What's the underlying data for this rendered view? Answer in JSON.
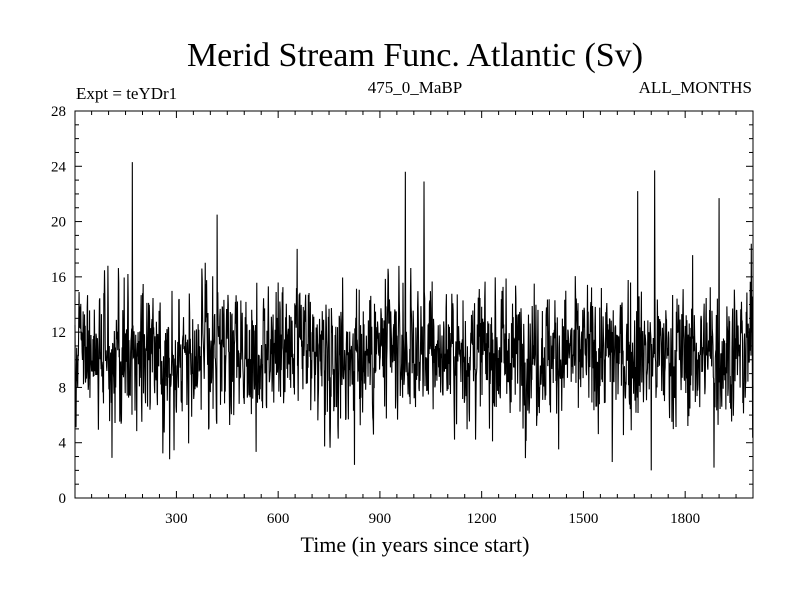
{
  "chart_data": {
    "type": "line",
    "title": "Merid Stream Func. Atlantic (Sv)",
    "subtitle_left": "Expt = teYDr1",
    "subtitle_center": "475_0_MaBP",
    "subtitle_right": "ALL_MONTHS",
    "xlabel": "Time (in years since start)",
    "ylabel": "",
    "xlim": [
      1,
      2000
    ],
    "ylim": [
      0,
      28
    ],
    "xticks": [
      300,
      600,
      900,
      1200,
      1500,
      1800
    ],
    "yticks": [
      0,
      4,
      8,
      12,
      16,
      20,
      24,
      28
    ],
    "series": [
      {
        "values_note_free": true,
        "color": "#000000",
        "x_start": 1,
        "x_step": 1,
        "count": 2000,
        "mean": 10.5,
        "std": 2.4,
        "min": 2.0,
        "max": 24.3,
        "peaks": [
          {
            "x": 170,
            "y": 24.3
          },
          {
            "x": 420,
            "y": 20.5
          },
          {
            "x": 975,
            "y": 23.6
          },
          {
            "x": 1030,
            "y": 22.9
          },
          {
            "x": 1660,
            "y": 22.2
          },
          {
            "x": 1710,
            "y": 23.7
          },
          {
            "x": 1900,
            "y": 21.7
          },
          {
            "x": 1995,
            "y": 18.4
          }
        ],
        "troughs": [
          {
            "x": 110,
            "y": 2.9
          },
          {
            "x": 280,
            "y": 2.8
          },
          {
            "x": 825,
            "y": 2.4
          },
          {
            "x": 1585,
            "y": 2.6
          },
          {
            "x": 1700,
            "y": 2.0
          },
          {
            "x": 1885,
            "y": 2.2
          }
        ]
      }
    ]
  }
}
